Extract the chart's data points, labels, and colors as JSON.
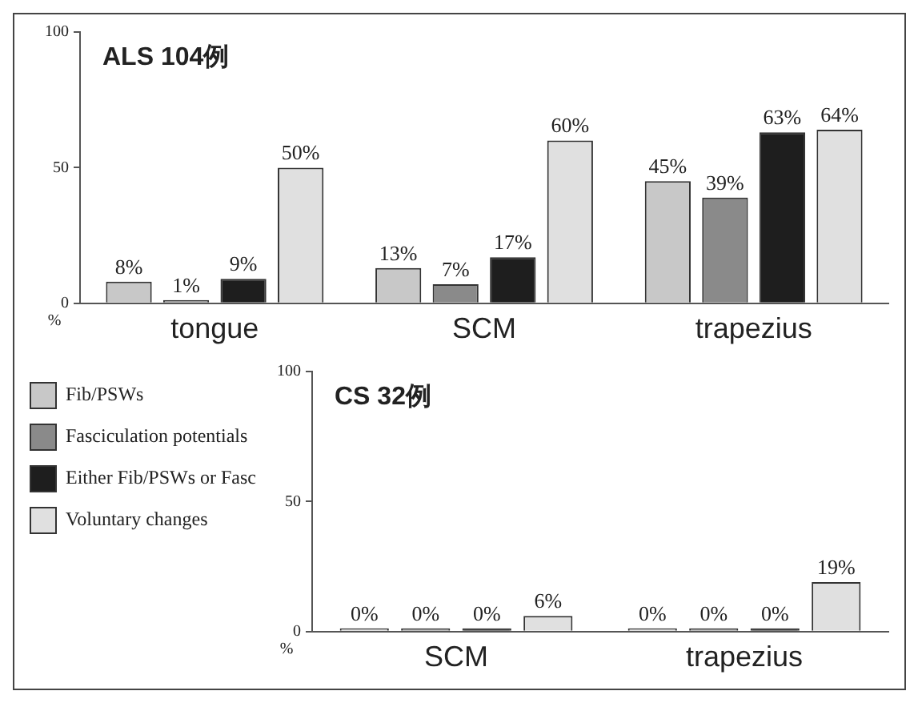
{
  "chart_data": [
    {
      "type": "bar",
      "title": "ALS 104例",
      "ylabel": "%",
      "categories": [
        "tongue",
        "SCM",
        "trapezius"
      ],
      "ylim": [
        0,
        100
      ],
      "yticks": [
        0,
        50,
        100
      ],
      "grid": false,
      "legend": false,
      "series": [
        {
          "color": "#c8c8c8",
          "values": [
            8,
            13,
            45
          ],
          "value_labels": [
            "8%",
            "13%",
            "45%"
          ]
        },
        {
          "color": "#8a8a8a",
          "values": [
            1,
            7,
            39
          ],
          "value_labels": [
            "1%",
            "7%",
            "39%"
          ]
        },
        {
          "color": "#1e1e1e",
          "values": [
            9,
            17,
            63
          ],
          "value_labels": [
            "9%",
            "17%",
            "63%"
          ]
        },
        {
          "color": "#e0e0e0",
          "values": [
            50,
            60,
            64
          ],
          "value_labels": [
            "50%",
            "60%",
            "64%"
          ]
        }
      ]
    },
    {
      "type": "bar",
      "title": "CS 32例",
      "ylabel": "%",
      "categories": [
        "SCM",
        "trapezius"
      ],
      "ylim": [
        0,
        100
      ],
      "yticks": [
        0,
        50,
        100
      ],
      "grid": false,
      "legend": "left",
      "series": [
        {
          "name": "Fib/PSWs",
          "color": "#c8c8c8",
          "values": [
            0,
            0
          ],
          "value_labels": [
            "0%",
            "0%"
          ]
        },
        {
          "name": "Fasciculation potentials",
          "color": "#8a8a8a",
          "values": [
            0,
            0
          ],
          "value_labels": [
            "0%",
            "0%"
          ]
        },
        {
          "name": "Either Fib/PSWs or Fasc",
          "color": "#1e1e1e",
          "values": [
            0,
            0
          ],
          "value_labels": [
            "0%",
            "0%"
          ]
        },
        {
          "name": "Voluntary changes",
          "color": "#e0e0e0",
          "values": [
            6,
            19
          ],
          "value_labels": [
            "6%",
            "19%"
          ]
        }
      ]
    }
  ]
}
